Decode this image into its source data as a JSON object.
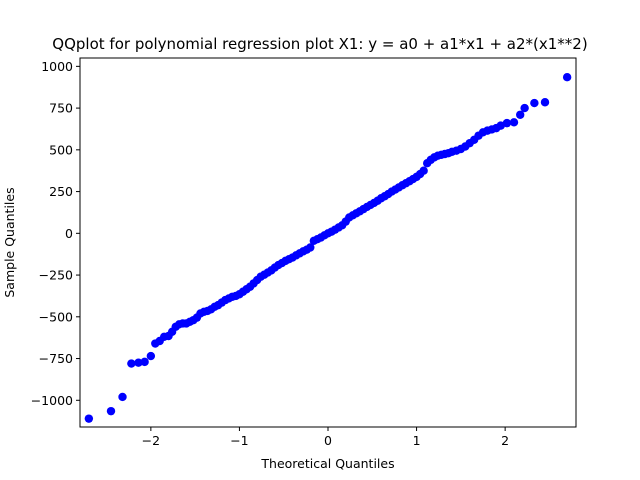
{
  "chart_data": {
    "type": "scatter",
    "title": "QQplot for polynomial regression plot X1:  y = a0 + a1*x1 + a2*(x1**2)",
    "xlabel": "Theoretical Quantiles",
    "ylabel": "Sample Quantiles",
    "xlim": [
      -2.8,
      2.8
    ],
    "ylim": [
      -1160,
      1050
    ],
    "xticks": [
      -2,
      -1,
      0,
      1,
      2
    ],
    "xtick_labels": [
      "−2",
      "−1",
      "0",
      "1",
      "2"
    ],
    "yticks": [
      -1000,
      -750,
      -500,
      -250,
      0,
      250,
      500,
      750,
      1000
    ],
    "ytick_labels": [
      "−1000",
      "−750",
      "−500",
      "−250",
      "0",
      "250",
      "500",
      "750",
      "1000"
    ],
    "grid": false,
    "marker_color": "#0000ff",
    "series": [
      {
        "points": [
          [
            -2.7,
            -1110
          ],
          [
            -2.45,
            -1065
          ],
          [
            -2.32,
            -980
          ],
          [
            -2.22,
            -780
          ],
          [
            -2.14,
            -775
          ],
          [
            -2.07,
            -770
          ],
          [
            -2.0,
            -735
          ],
          [
            -1.95,
            -660
          ],
          [
            -1.9,
            -645
          ],
          [
            -1.85,
            -620
          ],
          [
            -1.8,
            -615
          ],
          [
            -1.76,
            -590
          ],
          [
            -1.72,
            -560
          ],
          [
            -1.68,
            -545
          ],
          [
            -1.64,
            -540
          ],
          [
            -1.6,
            -540
          ],
          [
            -1.56,
            -530
          ],
          [
            -1.52,
            -520
          ],
          [
            -1.48,
            -505
          ],
          [
            -1.44,
            -480
          ],
          [
            -1.4,
            -470
          ],
          [
            -1.36,
            -465
          ],
          [
            -1.32,
            -455
          ],
          [
            -1.28,
            -440
          ],
          [
            -1.24,
            -430
          ],
          [
            -1.2,
            -415
          ],
          [
            -1.16,
            -400
          ],
          [
            -1.12,
            -390
          ],
          [
            -1.08,
            -380
          ],
          [
            -1.04,
            -375
          ],
          [
            -1.0,
            -365
          ],
          [
            -0.96,
            -350
          ],
          [
            -0.92,
            -335
          ],
          [
            -0.88,
            -320
          ],
          [
            -0.84,
            -300
          ],
          [
            -0.8,
            -280
          ],
          [
            -0.76,
            -260
          ],
          [
            -0.72,
            -248
          ],
          [
            -0.68,
            -235
          ],
          [
            -0.64,
            -222
          ],
          [
            -0.6,
            -205
          ],
          [
            -0.56,
            -190
          ],
          [
            -0.52,
            -178
          ],
          [
            -0.48,
            -165
          ],
          [
            -0.44,
            -155
          ],
          [
            -0.4,
            -145
          ],
          [
            -0.36,
            -132
          ],
          [
            -0.32,
            -120
          ],
          [
            -0.28,
            -108
          ],
          [
            -0.24,
            -98
          ],
          [
            -0.2,
            -85
          ],
          [
            -0.16,
            -45
          ],
          [
            -0.12,
            -35
          ],
          [
            -0.08,
            -25
          ],
          [
            -0.04,
            -12
          ],
          [
            0.0,
            0
          ],
          [
            0.04,
            10
          ],
          [
            0.08,
            22
          ],
          [
            0.12,
            35
          ],
          [
            0.16,
            48
          ],
          [
            0.2,
            70
          ],
          [
            0.24,
            95
          ],
          [
            0.28,
            108
          ],
          [
            0.32,
            120
          ],
          [
            0.36,
            132
          ],
          [
            0.4,
            145
          ],
          [
            0.44,
            158
          ],
          [
            0.48,
            170
          ],
          [
            0.52,
            182
          ],
          [
            0.56,
            195
          ],
          [
            0.6,
            210
          ],
          [
            0.64,
            222
          ],
          [
            0.68,
            235
          ],
          [
            0.72,
            250
          ],
          [
            0.76,
            262
          ],
          [
            0.8,
            275
          ],
          [
            0.84,
            288
          ],
          [
            0.88,
            300
          ],
          [
            0.92,
            312
          ],
          [
            0.96,
            325
          ],
          [
            1.0,
            338
          ],
          [
            1.04,
            355
          ],
          [
            1.08,
            375
          ],
          [
            1.12,
            420
          ],
          [
            1.16,
            440
          ],
          [
            1.2,
            455
          ],
          [
            1.24,
            465
          ],
          [
            1.28,
            470
          ],
          [
            1.32,
            475
          ],
          [
            1.36,
            480
          ],
          [
            1.4,
            488
          ],
          [
            1.45,
            495
          ],
          [
            1.5,
            505
          ],
          [
            1.55,
            520
          ],
          [
            1.6,
            540
          ],
          [
            1.65,
            560
          ],
          [
            1.7,
            585
          ],
          [
            1.75,
            605
          ],
          [
            1.8,
            615
          ],
          [
            1.85,
            622
          ],
          [
            1.9,
            630
          ],
          [
            1.95,
            645
          ],
          [
            2.02,
            660
          ],
          [
            2.1,
            665
          ],
          [
            2.17,
            710
          ],
          [
            2.22,
            750
          ],
          [
            2.33,
            780
          ],
          [
            2.45,
            785
          ],
          [
            2.7,
            935
          ]
        ]
      }
    ]
  }
}
